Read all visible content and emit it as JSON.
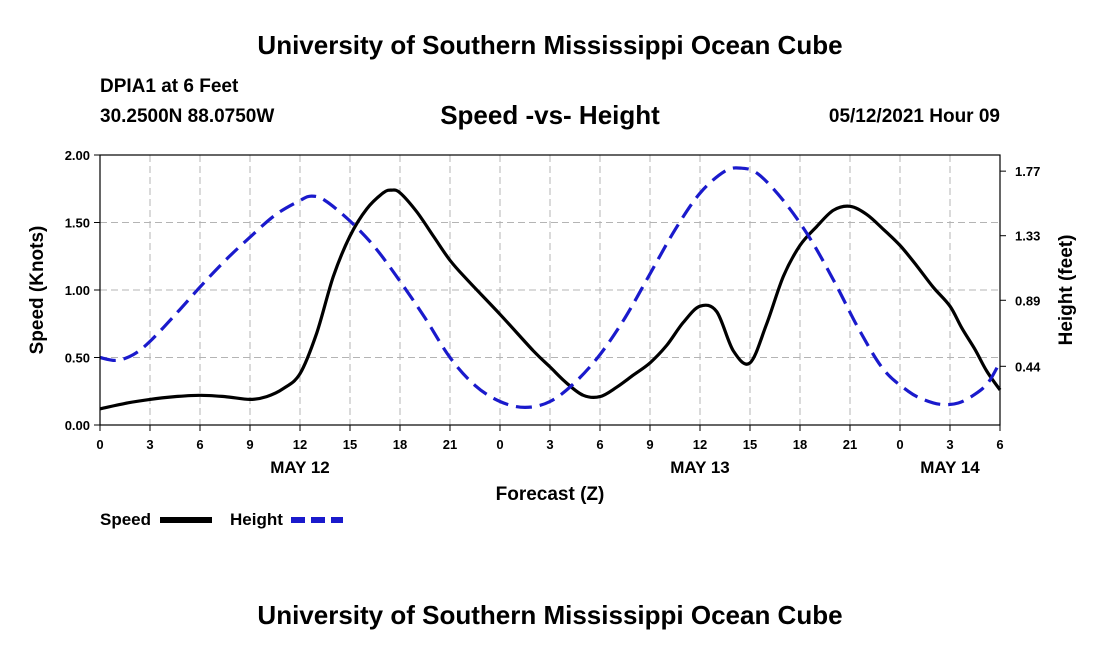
{
  "header": {
    "title": "University of Southern Mississippi Ocean Cube",
    "station": "DPIA1 at 6 Feet",
    "coordinates": "30.2500N  88.0750W",
    "chart_title": "Speed -vs- Height",
    "datetime": "05/12/2021 Hour 09"
  },
  "footer": {
    "title": "University of Southern Mississippi Ocean Cube"
  },
  "legend": {
    "speed_label": "Speed",
    "height_label": "Height"
  },
  "colors": {
    "speed": "#000000",
    "height": "#1a1acc",
    "grid": "#b4b4b4"
  },
  "chart_data": {
    "type": "line",
    "title": "Speed -vs- Height",
    "xlabel": "Forecast (Z)",
    "ylabel": "Speed (Knots)",
    "y2label": "Height (feet)",
    "xlim": [
      0,
      54
    ],
    "ylim": [
      0,
      2.0
    ],
    "y2lim": [
      0.04,
      1.88
    ],
    "grid": true,
    "x_ticks": [
      0,
      3,
      6,
      9,
      12,
      15,
      18,
      21,
      24,
      27,
      30,
      33,
      36,
      39,
      42,
      45,
      48,
      51,
      54
    ],
    "x_tick_labels": [
      "0",
      "3",
      "6",
      "9",
      "12",
      "15",
      "18",
      "21",
      "0",
      "3",
      "6",
      "9",
      "12",
      "15",
      "18",
      "21",
      "0",
      "3",
      "6"
    ],
    "date_labels": [
      {
        "x": 12,
        "label": "MAY 12"
      },
      {
        "x": 36,
        "label": "MAY 13"
      },
      {
        "x": 51,
        "label": "MAY 14"
      }
    ],
    "y_ticks": [
      0,
      0.5,
      1.0,
      1.5,
      2.0
    ],
    "y_tick_labels": [
      "0.00",
      "0.50",
      "1.00",
      "1.50",
      "2.00"
    ],
    "y2_ticks": [
      0.44,
      0.89,
      1.33,
      1.77
    ],
    "y2_tick_labels": [
      "0.44",
      "0.89",
      "1.33",
      "1.77"
    ],
    "series": [
      {
        "name": "Speed",
        "axis": "left",
        "style": "solid",
        "x": [
          0,
          1.5,
          3,
          4.5,
          6,
          7.5,
          9,
          10,
          11,
          12,
          13,
          14,
          15,
          16,
          17,
          17.5,
          18,
          19,
          20,
          21,
          22,
          24,
          26,
          27,
          28,
          29,
          30,
          31,
          32,
          33,
          34,
          35,
          36,
          37,
          38,
          39,
          40,
          41,
          42,
          43,
          44,
          45,
          46,
          47,
          48,
          49,
          50,
          51,
          51.7,
          52.5,
          53.2,
          54
        ],
        "values": [
          0.12,
          0.16,
          0.19,
          0.21,
          0.22,
          0.21,
          0.19,
          0.21,
          0.27,
          0.38,
          0.68,
          1.1,
          1.4,
          1.6,
          1.72,
          1.74,
          1.72,
          1.58,
          1.4,
          1.22,
          1.08,
          0.82,
          0.55,
          0.43,
          0.31,
          0.22,
          0.21,
          0.28,
          0.37,
          0.46,
          0.59,
          0.76,
          0.88,
          0.84,
          0.55,
          0.46,
          0.75,
          1.1,
          1.33,
          1.47,
          1.59,
          1.62,
          1.56,
          1.45,
          1.33,
          1.18,
          1.02,
          0.88,
          0.72,
          0.56,
          0.4,
          0.26
        ]
      },
      {
        "name": "Height",
        "axis": "right",
        "style": "dashed",
        "x": [
          0,
          1,
          2,
          3,
          4.5,
          6,
          7.5,
          9,
          10.5,
          12,
          12.7,
          13.5,
          15,
          16.5,
          18,
          19.5,
          21,
          22.5,
          24,
          25.5,
          27,
          28.5,
          30,
          31.5,
          33,
          34.5,
          36,
          37.5,
          38.5,
          39.5,
          41,
          42.5,
          44,
          45.5,
          47,
          48.5,
          49.5,
          50.5,
          51.5,
          52.5,
          53.3,
          54
        ],
        "values": [
          0.5,
          0.48,
          0.52,
          0.61,
          0.79,
          0.98,
          1.16,
          1.32,
          1.47,
          1.57,
          1.6,
          1.57,
          1.43,
          1.25,
          1.02,
          0.77,
          0.5,
          0.31,
          0.2,
          0.16,
          0.2,
          0.33,
          0.52,
          0.77,
          1.07,
          1.37,
          1.62,
          1.77,
          1.79,
          1.75,
          1.57,
          1.33,
          1.03,
          0.7,
          0.42,
          0.27,
          0.21,
          0.18,
          0.19,
          0.25,
          0.33,
          0.47
        ]
      }
    ]
  }
}
